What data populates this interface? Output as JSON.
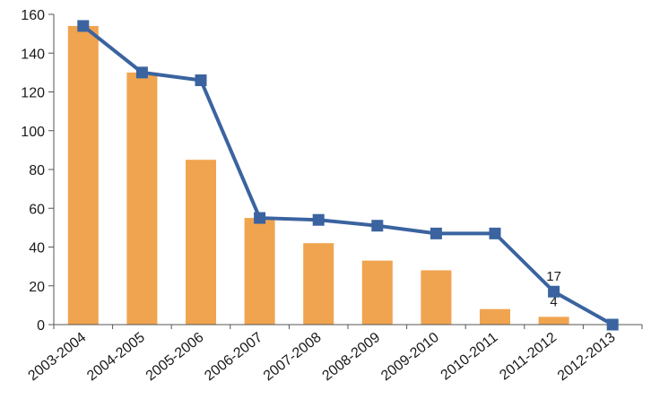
{
  "chart_data": {
    "type": "bar",
    "title": "",
    "xlabel": "",
    "ylabel": "",
    "categories": [
      "2003-2004",
      "2004-2005",
      "2005-2006",
      "2006-2007",
      "2007-2008",
      "2008-2009",
      "2009-2010",
      "2010-2011",
      "2011-2012",
      "2012-2013"
    ],
    "ylim": [
      0,
      160
    ],
    "yticks": [
      0,
      20,
      40,
      60,
      80,
      100,
      120,
      140,
      160
    ],
    "grid": false,
    "legend": "none",
    "series": [
      {
        "type": "bar",
        "color": "#f0a44f",
        "values": [
          154,
          130,
          85,
          55,
          42,
          33,
          28,
          8,
          4,
          0
        ]
      },
      {
        "type": "line",
        "marker": "square",
        "color": "#3a63a0",
        "values": [
          154,
          130,
          126,
          55,
          54,
          51,
          47,
          47,
          17,
          0
        ]
      }
    ],
    "annotations": [
      {
        "series": 1,
        "index": 8,
        "text": "17"
      },
      {
        "series": 0,
        "index": 8,
        "text": "4"
      }
    ]
  }
}
